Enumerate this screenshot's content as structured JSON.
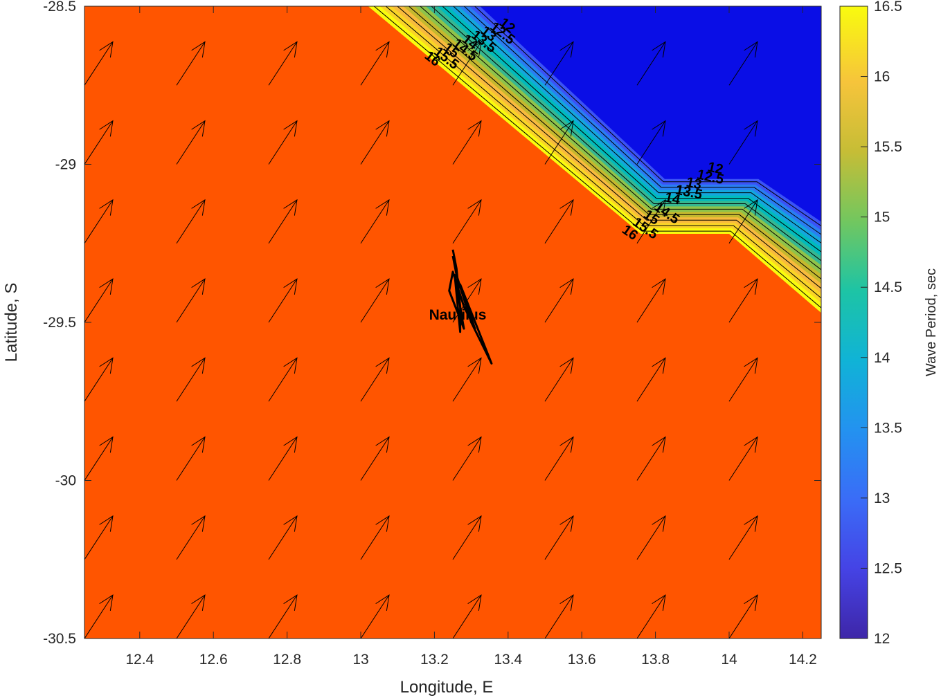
{
  "chart_data": {
    "type": "heatmap",
    "title": "",
    "xlabel": "Longitude, E",
    "ylabel": "Latitude, S",
    "xlim": [
      12.25,
      14.25
    ],
    "ylim": [
      -30.5,
      -28.5
    ],
    "xticks": [
      "12.4",
      "12.6",
      "12.8",
      "13",
      "13.2",
      "13.4",
      "13.6",
      "13.8",
      "14",
      "14.2"
    ],
    "yticks": [
      "-28.5",
      "-29",
      "-29.5",
      "-30",
      "-30.5"
    ],
    "colorbar": {
      "label": "Wave Period, sec",
      "range": [
        12,
        16.5
      ],
      "ticks": [
        "12",
        "12.5",
        "13",
        "13.5",
        "14",
        "14.5",
        "15",
        "15.5",
        "16",
        "16.5"
      ],
      "colormap": "parula"
    },
    "field": {
      "background_value": 16.3,
      "background_color": "#ff5500",
      "low_value": 12,
      "low_color": "#0a0ee6",
      "transition_boundary_lonlat": [
        [
          13.02,
          -28.5
        ],
        [
          13.76,
          -29.22
        ],
        [
          14.0,
          -29.22
        ],
        [
          14.25,
          -29.47
        ]
      ],
      "contour_levels": [
        16.5,
        16,
        15.5,
        15,
        14.5,
        14,
        13.5,
        13,
        12.5,
        12
      ],
      "band_colors": [
        "#f9fb0e",
        "#f9d427",
        "#f8ba3d",
        "#c5b82e",
        "#8fc34a",
        "#36b791",
        "#01bbbc",
        "#14a6dd",
        "#2a7df2",
        "#3b52f5",
        "#0a0ee6"
      ],
      "contour_labels_top": [
        "16",
        "15.5",
        "15",
        "14.5",
        "14",
        "13.5",
        "13",
        "12.5",
        "12"
      ],
      "contour_labels_mid": [
        "16",
        "15.5",
        "15",
        "14.5",
        "14",
        "13.5",
        "13",
        "12.5",
        "12"
      ]
    },
    "wave_direction_arrows": {
      "lon": [
        12.25,
        12.5,
        12.75,
        13.0,
        13.25,
        13.5,
        13.75,
        14.0
      ],
      "lat": [
        -28.75,
        -29.0,
        -29.25,
        -29.5,
        -29.75,
        -30.0,
        -30.25,
        -30.5
      ],
      "d_lon": 0.14,
      "d_lat": 0.25,
      "direction": "towards northeast"
    },
    "track": {
      "name": "Nautilus",
      "points": [
        [
          13.25,
          -29.27
        ],
        [
          13.26,
          -29.33
        ],
        [
          13.27,
          -29.45
        ],
        [
          13.27,
          -29.53
        ],
        [
          13.255,
          -29.35
        ],
        [
          13.28,
          -29.52
        ],
        [
          13.24,
          -29.4
        ],
        [
          13.25,
          -29.34
        ],
        [
          13.28,
          -29.45
        ],
        [
          13.31,
          -29.52
        ],
        [
          13.27,
          -29.38
        ],
        [
          13.355,
          -29.63
        ],
        [
          13.3,
          -29.5
        ],
        [
          13.26,
          -29.35
        ],
        [
          13.25,
          -29.29
        ]
      ]
    }
  }
}
